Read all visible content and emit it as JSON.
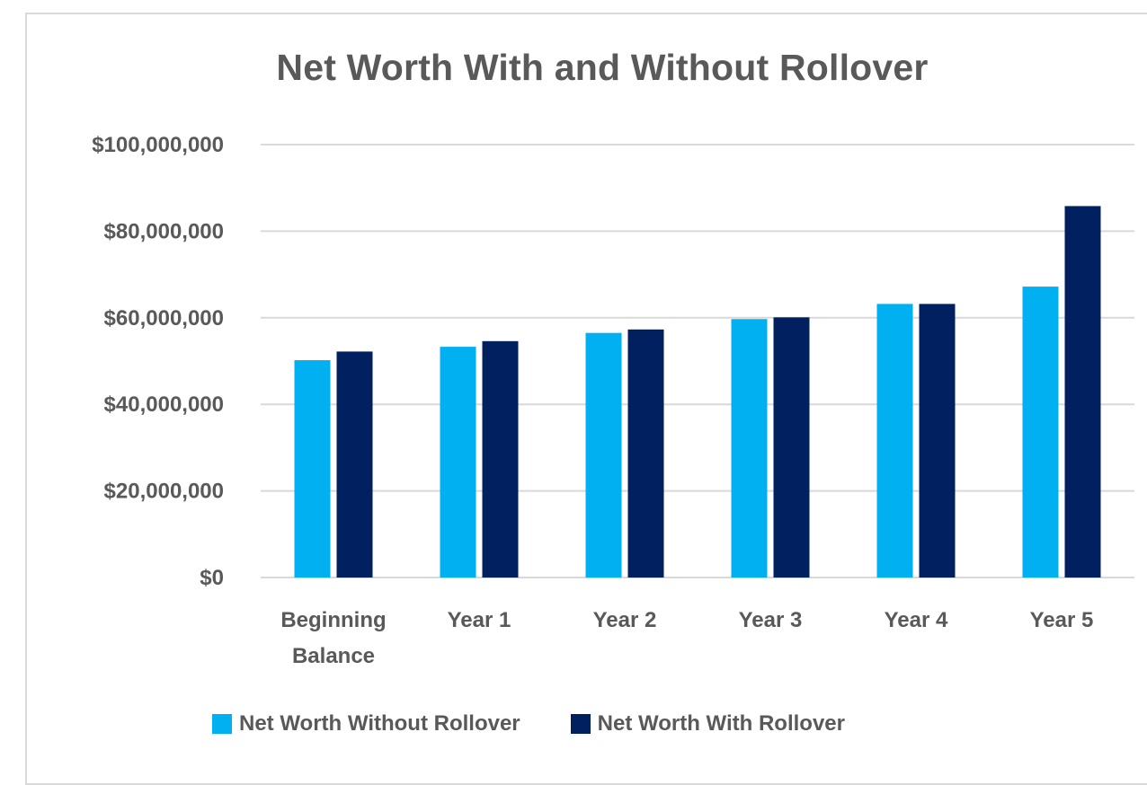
{
  "chart_data": {
    "type": "bar",
    "title": "Net Worth With and Without Rollover",
    "xlabel": "",
    "ylabel": "",
    "categories": [
      [
        "Beginning",
        "Balance"
      ],
      [
        "Year 1"
      ],
      [
        "Year 2"
      ],
      [
        "Year 3"
      ],
      [
        "Year 4"
      ],
      [
        "Year 5"
      ]
    ],
    "series": [
      {
        "name": "Net Worth Without Rollover",
        "color": "#00b0f0",
        "values": [
          50200000,
          53300000,
          56500000,
          59700000,
          63200000,
          67200000
        ]
      },
      {
        "name": "Net Worth With Rollover",
        "color": "#002060",
        "values": [
          52200000,
          54600000,
          57300000,
          60100000,
          63200000,
          85800000
        ]
      }
    ],
    "ylim": [
      0,
      100000000
    ],
    "yticks": [
      0,
      20000000,
      40000000,
      60000000,
      80000000,
      100000000
    ],
    "ytick_labels": [
      "$0",
      "$20,000,000",
      "$40,000,000",
      "$60,000,000",
      "$80,000,000",
      "$100,000,000"
    ],
    "grid": true,
    "legend_position": "bottom",
    "gridline_color": "#d9d9d9",
    "text_color": "#595959"
  }
}
